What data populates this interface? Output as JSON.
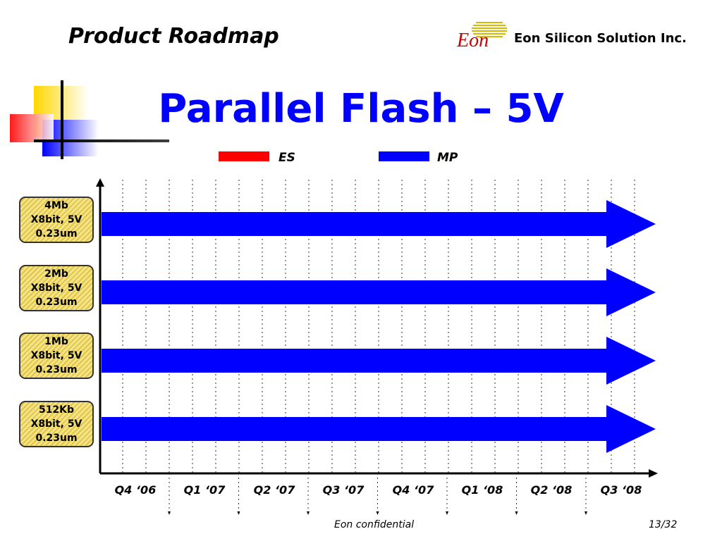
{
  "header": {
    "title": "Product Roadmap",
    "logo_text": "Eon",
    "company": "Eon Silicon Solution Inc."
  },
  "slide": {
    "title": "Parallel Flash – 5V"
  },
  "legend": [
    {
      "label": "ES",
      "color": "#ff0000"
    },
    {
      "label": "MP",
      "color": "#0000ff"
    }
  ],
  "products": [
    {
      "line1": "4Mb",
      "line2": "X8bit, 5V",
      "line3": "0.23um"
    },
    {
      "line1": "2Mb",
      "line2": "X8bit, 5V",
      "line3": "0.23um"
    },
    {
      "line1": "1Mb",
      "line2": "X8bit, 5V",
      "line3": "0.23um"
    },
    {
      "line1": "512Kb",
      "line2": "X8bit, 5V",
      "line3": "0.23um"
    }
  ],
  "quarters": [
    "Q4 ‘06",
    "Q1 ‘07",
    "Q2 ‘07",
    "Q3 ‘07",
    "Q4 ‘07",
    "Q1 ‘08",
    "Q2 ‘08",
    "Q3 ‘08"
  ],
  "footer": {
    "confidential": "Eon confidential",
    "page": "13/32"
  },
  "colors": {
    "accent": "#0000ff",
    "es": "#ff0000",
    "mp": "#0000ff"
  }
}
